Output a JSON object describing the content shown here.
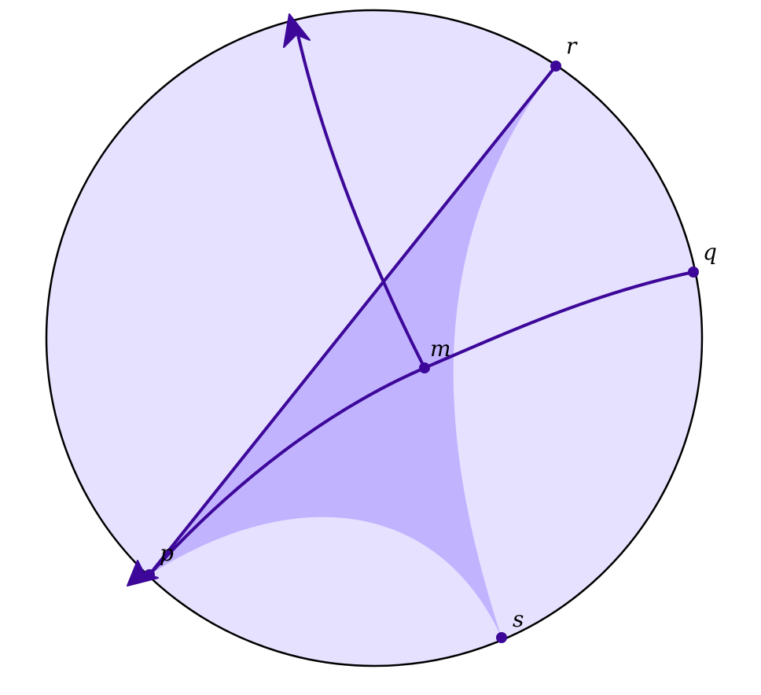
{
  "labels": {
    "r": "r",
    "q": "q",
    "m": "m",
    "p": "p",
    "s": "s"
  },
  "colors": {
    "disk_fill": "#e6e1ff",
    "triangle_fill": "#c2b3ff",
    "curve_stroke": "#3d0899",
    "point_fill": "#3d0899",
    "boundary_stroke": "#000000"
  }
}
